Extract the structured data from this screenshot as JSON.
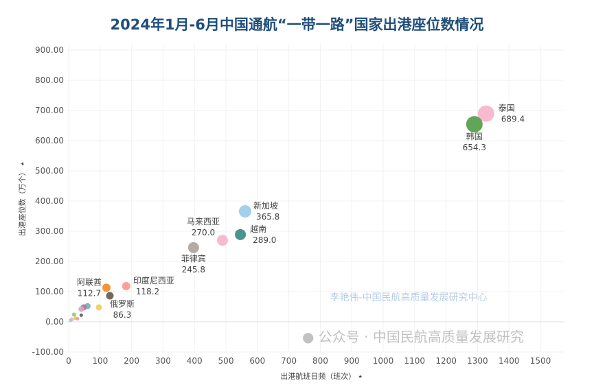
{
  "chart_data": {
    "type": "scatter",
    "title": "2024年1月-6月中国通航“一带一路”国家出港座位数情况",
    "xlabel": "出港航班日频（班次）",
    "ylabel": "出港座位数（万个）",
    "xlim": [
      0,
      1550
    ],
    "ylim": [
      -120,
      920
    ],
    "xticks": [
      "0",
      "100",
      "200",
      "300",
      "400",
      "500",
      "600",
      "700",
      "800",
      "900",
      "1000",
      "1100",
      "1200",
      "1300",
      "1400",
      "1500"
    ],
    "yticks": [
      "-100.00",
      "0.00",
      "100.00",
      "200.00",
      "300.00",
      "400.00",
      "500.00",
      "600.00",
      "700.00",
      "800.00",
      "900.00"
    ],
    "grid": true,
    "points": [
      {
        "name": "泰国",
        "label": "689.4",
        "x": 1327,
        "y": 689.4,
        "color": "#f7b6cc",
        "size": 12
      },
      {
        "name": "韩国",
        "label": "654.3",
        "x": 1290,
        "y": 654.3,
        "color": "#59a14f",
        "size": 12
      },
      {
        "name": "新加坡",
        "label": "365.8",
        "x": 561,
        "y": 365.8,
        "color": "#9fcbe8",
        "size": 9
      },
      {
        "name": "越南",
        "label": "289.0",
        "x": 546,
        "y": 289.0,
        "color": "#3d8f87",
        "size": 8
      },
      {
        "name": "马来西亚",
        "label": "270.0",
        "x": 489,
        "y": 270.0,
        "color": "#f7b6cc",
        "size": 8
      },
      {
        "name": "菲律宾",
        "label": "245.8",
        "x": 397,
        "y": 245.8,
        "color": "#b0a6a0",
        "size": 8
      },
      {
        "name": "印度尼西亚",
        "label": "118.2",
        "x": 183,
        "y": 118.2,
        "color": "#ff9896",
        "size": 6
      },
      {
        "name": "阿联酋",
        "label": "112.7",
        "x": 120,
        "y": 112.7,
        "color": "#f28e2b",
        "size": 6
      },
      {
        "name": "俄罗斯",
        "label": "86.3",
        "x": 131,
        "y": 86.3,
        "color": "#6b5f5a",
        "size": 5.5
      },
      {
        "name": "",
        "label": "",
        "x": 96,
        "y": 48,
        "color": "#f1ce63",
        "size": 4.5
      },
      {
        "name": "",
        "label": "",
        "x": 60,
        "y": 52,
        "color": "#76b7b2",
        "size": 4.5
      },
      {
        "name": "",
        "label": "",
        "x": 48,
        "y": 48,
        "color": "#b07aa1",
        "size": 4.5
      },
      {
        "name": "",
        "label": "",
        "x": 40,
        "y": 42,
        "color": "#d4a6c8",
        "size": 4
      },
      {
        "name": "",
        "label": "",
        "x": 40,
        "y": 22,
        "color": "#6b5f5a",
        "size": 2.5
      },
      {
        "name": "",
        "label": "",
        "x": 17,
        "y": 24,
        "color": "#8cd17d",
        "size": 3
      },
      {
        "name": "",
        "label": "",
        "x": 22,
        "y": 12,
        "color": "#f1ce63",
        "size": 3
      },
      {
        "name": "",
        "label": "",
        "x": 10,
        "y": 8,
        "color": "#f7b6cc",
        "size": 3
      },
      {
        "name": "",
        "label": "",
        "x": 6,
        "y": 5,
        "color": "#9fcbe8",
        "size": 2.5
      },
      {
        "name": "",
        "label": "",
        "x": 28,
        "y": 10,
        "color": "#e6a0a0",
        "size": 2.5
      }
    ]
  },
  "watermarks": {
    "center": "李艳伟-中国民航高质量发展研究中心",
    "bottom": "公众号 · 中国民航高质量发展研究"
  }
}
